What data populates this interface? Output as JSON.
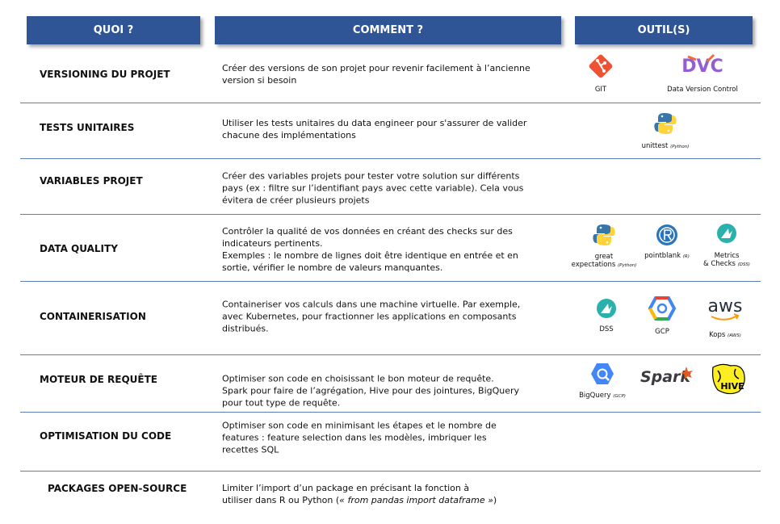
{
  "header": {
    "what": "QUOI ?",
    "how": "COMMENT ?",
    "tools": "OUTIL(S)"
  },
  "rows": [
    {
      "what": "VERSIONING DU PROJET",
      "how": [
        "Créer des versions de son projet pour revenir facilement à l’ancienne",
        "version si besoin"
      ],
      "tools": [
        {
          "name": "GIT"
        },
        {
          "name": "Data Version Control",
          "logo": "DVC"
        }
      ]
    },
    {
      "what": "TESTS UNITAIRES",
      "how": [
        "Utiliser les tests unitaires du data engineer pour s'assurer de valider",
        "chacune des implémentations"
      ],
      "tools": [
        {
          "name": "unittest",
          "note": "(Python)"
        }
      ]
    },
    {
      "what": "VARIABLES PROJET",
      "how": [
        "Créer des variables projets pour tester votre solution sur différents",
        "pays (ex : filtre sur l’identifiant pays avec cette variable). Cela vous",
        "évitera de créer plusieurs projets"
      ],
      "tools": []
    },
    {
      "what": "DATA QUALITY",
      "how": [
        "Contrôler la qualité de vos données en créant des checks sur des",
        "indicateurs pertinents.",
        "Exemples : le nombre de lignes doit être identique en entrée et en",
        "sortie, vérifier le nombre de valeurs manquantes."
      ],
      "tools": [
        {
          "name": [
            "great",
            "expectations"
          ],
          "note": "(Python)"
        },
        {
          "name": "pointblank",
          "note": "(R)"
        },
        {
          "name": [
            "Metrics",
            "& Checks"
          ],
          "note": "(DSS)"
        }
      ]
    },
    {
      "what": "CONTAINERISATION",
      "how": [
        "Containeriser vos calculs dans une machine virtuelle. Par exemple,",
        "avec Kubernetes, pour fractionner les applications en composants",
        "distribués."
      ],
      "tools": [
        {
          "name": "DSS"
        },
        {
          "name": "GCP"
        },
        {
          "name": "Kops",
          "note": "(AWS)",
          "logo": "aws"
        }
      ]
    },
    {
      "what": "MOTEUR DE REQUÊTE",
      "how": [
        "Optimiser son code en choisissant le bon moteur de requête.",
        "Spark pour faire de l’agrégation, Hive pour des jointures, BigQuery",
        "pour tout type de requête."
      ],
      "tools": [
        {
          "name": "BigQuery",
          "note": "(GCP)"
        },
        {
          "logo": "Spark"
        },
        {
          "logo": "HIVE"
        }
      ]
    },
    {
      "what": "OPTIMISATION DU CODE",
      "how": [
        "Optimiser son code en minimisant les étapes et le nombre de",
        "features : feature selection dans les modèles, imbriquer les",
        "recettes SQL"
      ],
      "tools": []
    },
    {
      "what": "PACKAGES OPEN-SOURCE",
      "how": [
        "Limiter l’import d’un package en précisant la fonction à",
        [
          {
            "text": "utiliser dans R ou Python ("
          },
          {
            "text": "« from pandas import dataframe »",
            "italic": true
          },
          {
            "text": ")"
          }
        ]
      ],
      "tools": []
    }
  ]
}
